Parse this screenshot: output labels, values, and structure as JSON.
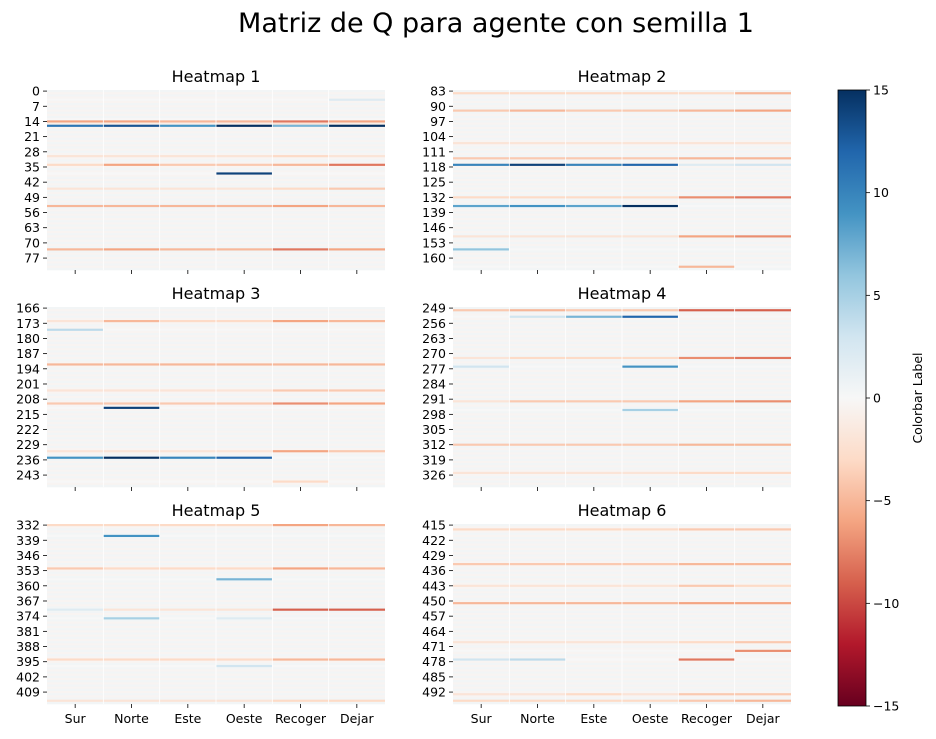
{
  "title": "Matriz de Q para agente con semilla 1",
  "colorbar": {
    "label": "Colorbar Label",
    "vmin": -15,
    "vmax": 15,
    "ticks": [
      15,
      10,
      5,
      0,
      -5,
      -10,
      -15
    ],
    "tick_labels": [
      "15",
      "10",
      "5",
      "0",
      "−5",
      "−10",
      "−15"
    ],
    "colormap": "RdBu",
    "color_stops": [
      "#67001f",
      "#b2182b",
      "#d6604d",
      "#f4a582",
      "#fddbc7",
      "#f7f7f7",
      "#d1e5f0",
      "#92c5de",
      "#4393c3",
      "#2166ac",
      "#053061"
    ]
  },
  "chart_data": [
    {
      "type": "heatmap",
      "title": "Heatmap 1",
      "columns": [
        "Sur",
        "Norte",
        "Este",
        "Oeste",
        "Recoger",
        "Dejar"
      ],
      "row_start": 0,
      "row_count": 83,
      "y_ticks": [
        0,
        7,
        14,
        21,
        28,
        35,
        42,
        49,
        56,
        63,
        70,
        77
      ],
      "show_x_labels": false,
      "highlights": [
        {
          "row": 4,
          "values": [
            0,
            0,
            0,
            0,
            0,
            2
          ]
        },
        {
          "row": 13,
          "values": [
            0,
            0,
            0,
            0,
            0,
            0
          ]
        },
        {
          "row": 14,
          "values": [
            -6,
            -6,
            -5,
            -5,
            -8,
            -6
          ]
        },
        {
          "row": 15,
          "values": [
            -1,
            -1,
            -1,
            -1,
            -2,
            -1
          ]
        },
        {
          "row": 16,
          "values": [
            11,
            13,
            9,
            15,
            7,
            15
          ]
        },
        {
          "row": 30,
          "values": [
            -2,
            -2,
            -2,
            -2,
            -3,
            -2
          ]
        },
        {
          "row": 34,
          "values": [
            -3,
            -6,
            -4,
            -4,
            -5,
            -8
          ]
        },
        {
          "row": 38,
          "values": [
            0,
            0,
            0,
            14,
            0,
            0
          ]
        },
        {
          "row": 45,
          "values": [
            -2,
            -2,
            -2,
            -2,
            -3,
            -4
          ]
        },
        {
          "row": 53,
          "values": [
            -5,
            -5,
            -5,
            -5,
            -6,
            -5
          ]
        },
        {
          "row": 73,
          "values": [
            -5,
            -6,
            -5,
            -5,
            -8,
            -6
          ]
        }
      ]
    },
    {
      "type": "heatmap",
      "title": "Heatmap 2",
      "columns": [
        "Sur",
        "Norte",
        "Este",
        "Oeste",
        "Recoger",
        "Dejar"
      ],
      "row_start": 83,
      "row_count": 83,
      "y_ticks": [
        83,
        90,
        97,
        104,
        111,
        118,
        125,
        132,
        139,
        146,
        153,
        160
      ],
      "show_x_labels": false,
      "highlights": [
        {
          "row": 84,
          "values": [
            -3,
            -3,
            -3,
            -3,
            -3,
            -5
          ]
        },
        {
          "row": 92,
          "values": [
            -4,
            -5,
            -4,
            -4,
            -5,
            -6
          ]
        },
        {
          "row": 107,
          "values": [
            -2,
            -2,
            -2,
            -2,
            -2,
            -2
          ]
        },
        {
          "row": 114,
          "values": [
            -4,
            -4,
            -4,
            -4,
            -5,
            -5
          ]
        },
        {
          "row": 117,
          "values": [
            10,
            14,
            10,
            12,
            2,
            3
          ]
        },
        {
          "row": 132,
          "values": [
            -3,
            -3,
            -3,
            -3,
            -7,
            -8
          ]
        },
        {
          "row": 136,
          "values": [
            8,
            9,
            8,
            15,
            0,
            0
          ]
        },
        {
          "row": 150,
          "values": [
            -2,
            -2,
            -2,
            -2,
            -6,
            -7
          ]
        },
        {
          "row": 156,
          "values": [
            6,
            0,
            0,
            0,
            0,
            0
          ]
        },
        {
          "row": 164,
          "values": [
            0,
            0,
            0,
            0,
            -5,
            0
          ]
        }
      ]
    },
    {
      "type": "heatmap",
      "title": "Heatmap 3",
      "columns": [
        "Sur",
        "Norte",
        "Este",
        "Oeste",
        "Recoger",
        "Dejar"
      ],
      "row_start": 166,
      "row_count": 83,
      "y_ticks": [
        166,
        173,
        180,
        187,
        194,
        201,
        208,
        215,
        222,
        229,
        236,
        243
      ],
      "show_x_labels": false,
      "highlights": [
        {
          "row": 172,
          "values": [
            -2,
            -5,
            -3,
            -3,
            -6,
            -5
          ]
        },
        {
          "row": 176,
          "values": [
            4,
            0,
            0,
            0,
            0,
            0
          ]
        },
        {
          "row": 192,
          "values": [
            -5,
            -5,
            -5,
            -5,
            -5,
            -5
          ]
        },
        {
          "row": 204,
          "values": [
            -2,
            -2,
            -2,
            -2,
            -4,
            -4
          ]
        },
        {
          "row": 210,
          "values": [
            -4,
            -4,
            -4,
            -4,
            -7,
            -6
          ]
        },
        {
          "row": 212,
          "values": [
            0,
            14,
            0,
            0,
            0,
            0
          ]
        },
        {
          "row": 232,
          "values": [
            -2,
            -2,
            -2,
            -2,
            -6,
            -4
          ]
        },
        {
          "row": 235,
          "values": [
            9,
            15,
            10,
            12,
            0,
            0
          ]
        },
        {
          "row": 246,
          "values": [
            0,
            0,
            0,
            0,
            -3,
            0
          ]
        }
      ]
    },
    {
      "type": "heatmap",
      "title": "Heatmap 4",
      "columns": [
        "Sur",
        "Norte",
        "Este",
        "Oeste",
        "Recoger",
        "Dejar"
      ],
      "row_start": 249,
      "row_count": 83,
      "y_ticks": [
        249,
        256,
        263,
        270,
        277,
        284,
        291,
        298,
        305,
        312,
        319,
        326
      ],
      "show_x_labels": false,
      "highlights": [
        {
          "row": 250,
          "values": [
            -4,
            -5,
            -4,
            -4,
            -9,
            -9
          ]
        },
        {
          "row": 253,
          "values": [
            0,
            3,
            7,
            12,
            0,
            0
          ]
        },
        {
          "row": 272,
          "values": [
            -2,
            -3,
            -3,
            -3,
            -7,
            -8
          ]
        },
        {
          "row": 276,
          "values": [
            3,
            0,
            0,
            9,
            0,
            0
          ]
        },
        {
          "row": 292,
          "values": [
            -2,
            -4,
            -4,
            -4,
            -6,
            -7
          ]
        },
        {
          "row": 296,
          "values": [
            0,
            0,
            0,
            5,
            0,
            0
          ]
        },
        {
          "row": 312,
          "values": [
            -4,
            -4,
            -4,
            -4,
            -5,
            -5
          ]
        },
        {
          "row": 325,
          "values": [
            -2,
            -2,
            -2,
            -2,
            -3,
            -3
          ]
        }
      ]
    },
    {
      "type": "heatmap",
      "title": "Heatmap 5",
      "columns": [
        "Sur",
        "Norte",
        "Este",
        "Oeste",
        "Recoger",
        "Dejar"
      ],
      "row_start": 332,
      "row_count": 83,
      "y_ticks": [
        332,
        339,
        346,
        353,
        360,
        367,
        374,
        381,
        388,
        395,
        402,
        409
      ],
      "show_x_labels": true,
      "highlights": [
        {
          "row": 332,
          "values": [
            -3,
            -3,
            -3,
            -3,
            -6,
            -5
          ]
        },
        {
          "row": 337,
          "values": [
            0,
            9,
            0,
            0,
            0,
            0
          ]
        },
        {
          "row": 352,
          "values": [
            -4,
            -3,
            -3,
            -3,
            -6,
            -5
          ]
        },
        {
          "row": 357,
          "values": [
            0,
            0,
            0,
            7,
            0,
            0
          ]
        },
        {
          "row": 371,
          "values": [
            2,
            -2,
            -2,
            -2,
            -9,
            -9
          ]
        },
        {
          "row": 375,
          "values": [
            0,
            5,
            0,
            2,
            0,
            0
          ]
        },
        {
          "row": 394,
          "values": [
            -3,
            -3,
            -3,
            -3,
            -5,
            -5
          ]
        },
        {
          "row": 397,
          "values": [
            0,
            0,
            0,
            3,
            0,
            0
          ]
        },
        {
          "row": 413,
          "values": [
            -2,
            -2,
            -2,
            -2,
            -3,
            -3
          ]
        }
      ]
    },
    {
      "type": "heatmap",
      "title": "Heatmap 6",
      "columns": [
        "Sur",
        "Norte",
        "Este",
        "Oeste",
        "Recoger",
        "Dejar"
      ],
      "row_start": 415,
      "row_count": 83,
      "y_ticks": [
        415,
        422,
        429,
        436,
        443,
        450,
        457,
        464,
        471,
        478,
        485,
        492
      ],
      "show_x_labels": true,
      "highlights": [
        {
          "row": 417,
          "values": [
            -3,
            -3,
            -3,
            -3,
            -4,
            -4
          ]
        },
        {
          "row": 433,
          "values": [
            -4,
            -4,
            -4,
            -4,
            -5,
            -5
          ]
        },
        {
          "row": 443,
          "values": [
            -2,
            -2,
            -2,
            -2,
            -4,
            -3
          ]
        },
        {
          "row": 451,
          "values": [
            -5,
            -5,
            -5,
            -5,
            -6,
            -6
          ]
        },
        {
          "row": 469,
          "values": [
            -2,
            -2,
            -2,
            -2,
            -3,
            -4
          ]
        },
        {
          "row": 473,
          "values": [
            0,
            0,
            0,
            0,
            0,
            -7
          ]
        },
        {
          "row": 477,
          "values": [
            3,
            4,
            0,
            0,
            -8,
            0
          ]
        },
        {
          "row": 493,
          "values": [
            -2,
            -2,
            -3,
            -2,
            -4,
            -4
          ]
        },
        {
          "row": 496,
          "values": [
            -3,
            -3,
            -3,
            -3,
            -4,
            -5
          ]
        }
      ]
    }
  ]
}
